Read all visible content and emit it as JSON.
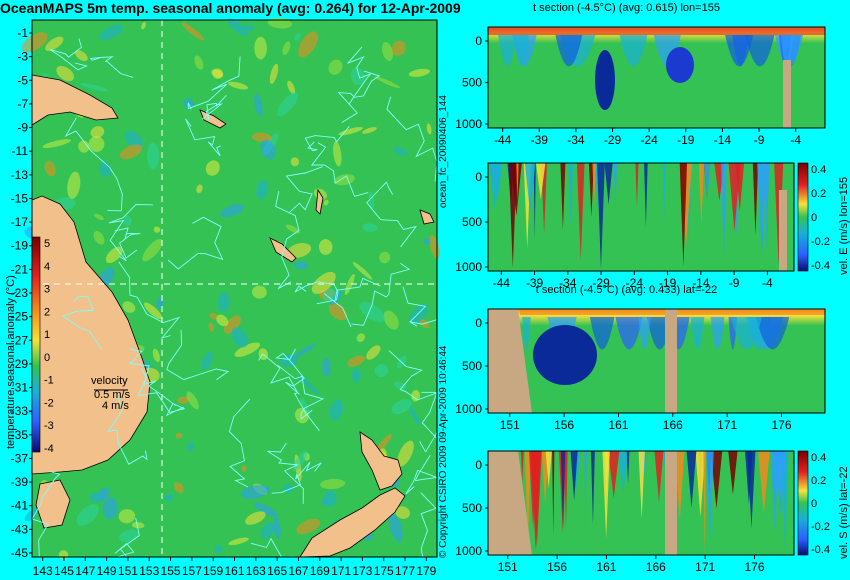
{
  "title": "OceanMAPS 5m temp. seasonal anomaly (avg: 0.264) for 12-Apr-2009",
  "side_texts": {
    "forecast_id": "ocean_fc_20090406_144",
    "issued": "09-Apr-2009 10:46:44",
    "copyright": "© Copyright CSIRO 2009"
  },
  "map": {
    "lat_ticks": [
      "-1",
      "-3",
      "-5",
      "-7",
      "-9",
      "-11",
      "-13",
      "-15",
      "-17",
      "-19",
      "-21",
      "-23",
      "-25",
      "-27",
      "-29",
      "-31",
      "-33",
      "-35",
      "-37",
      "-39",
      "-41",
      "-43",
      "-45"
    ],
    "lon_ticks": [
      "143",
      "145",
      "147",
      "149",
      "151",
      "153",
      "155",
      "157",
      "159",
      "161",
      "163",
      "165",
      "167",
      "169",
      "171",
      "173",
      "175",
      "177",
      "179"
    ],
    "colorbar_label": "temperature seasonal anomaly (°C)",
    "colorbar_ticks": [
      "5",
      "4",
      "3",
      "2",
      "1",
      "0",
      "-1",
      "-2",
      "-3",
      "-4"
    ],
    "velocity_label": "velocity",
    "velocity_value": "0.5 m/s",
    "velocity_value2": "4 m/s",
    "crosshair_lon": 155,
    "crosshair_lat": -22
  },
  "panels": [
    {
      "id": "t-lon",
      "title": "t section (-4.5°C) (avg: 0.615) lon=155",
      "x_ticks": [
        "-44",
        "-39",
        "-34",
        "-29",
        "-24",
        "-19",
        "-14",
        "-9",
        "-4"
      ],
      "y_ticks": [
        "0",
        "500",
        "1000"
      ]
    },
    {
      "id": "v-lon",
      "title": "",
      "x_ticks": [
        "-44",
        "-39",
        "-34",
        "-29",
        "-24",
        "-19",
        "-14",
        "-9",
        "-4"
      ],
      "y_ticks": [
        "0",
        "500",
        "1000"
      ],
      "cb_label": "vel. E (m/s) lon=155",
      "cb_ticks": [
        "0.4",
        "0.2",
        "0",
        "-0.2",
        "-0.4"
      ]
    },
    {
      "id": "t-lat",
      "title": "t section (-4.5°C) (avg: 0.433) lat=-22",
      "x_ticks": [
        "151",
        "156",
        "161",
        "166",
        "171",
        "176"
      ],
      "y_ticks": [
        "0",
        "500",
        "1000"
      ]
    },
    {
      "id": "v-lat",
      "title": "",
      "x_ticks": [
        "151",
        "156",
        "161",
        "166",
        "171",
        "176"
      ],
      "y_ticks": [
        "0",
        "500",
        "1000"
      ],
      "cb_label": "vel. S (m/s) lat=-22",
      "cb_ticks": [
        "0.4",
        "0.2",
        "0",
        "-0.2",
        "-0.4"
      ]
    }
  ],
  "colors": {
    "background": "#00ffff",
    "land": "#d2b48c",
    "ocean_base": "#34c254",
    "warm": "#f5e23a",
    "cold": "#2b7fff",
    "contour": "#7fffff"
  },
  "chart_data": [
    {
      "type": "heatmap",
      "title": "OceanMAPS 5m temp. seasonal anomaly (avg: 0.264) for 12-Apr-2009",
      "xlabel": "",
      "ylabel": "",
      "xlim": [
        142,
        180
      ],
      "ylim": [
        -45,
        0
      ],
      "colorbar": {
        "label": "temperature seasonal anomaly (°C)",
        "range": [
          -4,
          5
        ]
      },
      "mean": 0.264
    },
    {
      "type": "heatmap",
      "title": "t section (-4.5°C) (avg: 0.615) lon=155",
      "xlim": [
        -46,
        0
      ],
      "ylim": [
        1000,
        0
      ],
      "mean": 0.615
    },
    {
      "type": "heatmap",
      "title": "",
      "colorbar": {
        "label": "vel. E (m/s) lon=155",
        "range": [
          -0.4,
          0.4
        ]
      },
      "xlim": [
        -46,
        0
      ],
      "ylim": [
        1000,
        0
      ]
    },
    {
      "type": "heatmap",
      "title": "t section (-4.5°C) (avg: 0.433) lat=-22",
      "xlim": [
        149,
        180
      ],
      "ylim": [
        1000,
        0
      ],
      "mean": 0.433
    },
    {
      "type": "heatmap",
      "title": "",
      "colorbar": {
        "label": "vel. S (m/s) lat=-22",
        "range": [
          -0.4,
          0.4
        ]
      },
      "xlim": [
        149,
        180
      ],
      "ylim": [
        1000,
        0
      ]
    }
  ]
}
